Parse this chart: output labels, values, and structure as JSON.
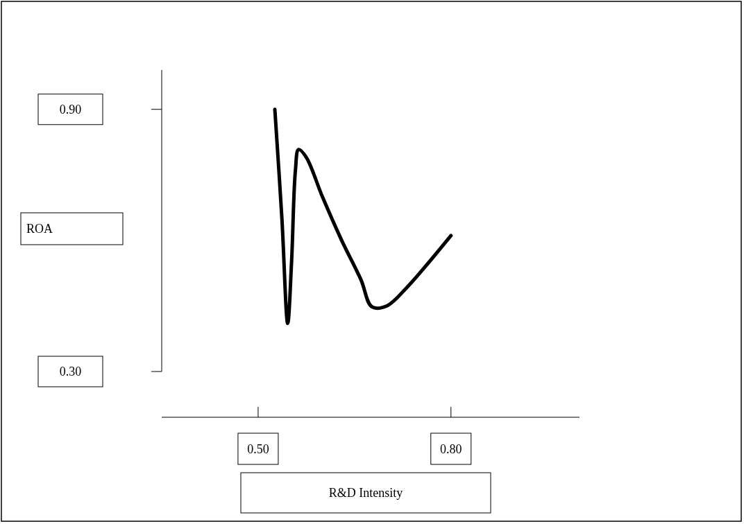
{
  "chart_data": {
    "type": "line",
    "xlabel": "R&D Intensity",
    "ylabel": "ROA",
    "xlim": [
      0.35,
      1.0
    ],
    "ylim": [
      0.3,
      0.99
    ],
    "xticks": [
      {
        "value": 0.5,
        "label": "0.50"
      },
      {
        "value": 0.8,
        "label": "0.80"
      }
    ],
    "yticks": [
      {
        "value": 0.3,
        "label": "0.30"
      },
      {
        "value": 0.9,
        "label": "0.90"
      }
    ],
    "grid": false,
    "marker": "none",
    "line_style": "solid",
    "series": [
      {
        "color": "#000000",
        "x": [
          0.526,
          0.537,
          0.546,
          0.552,
          0.558,
          0.563,
          0.575,
          0.6,
          0.63,
          0.66,
          0.677,
          0.7,
          0.73,
          0.76,
          0.8
        ],
        "values": [
          0.9,
          0.65,
          0.41,
          0.55,
          0.76,
          0.808,
          0.79,
          0.7,
          0.6,
          0.51,
          0.448,
          0.45,
          0.49,
          0.54,
          0.611
        ]
      }
    ]
  }
}
